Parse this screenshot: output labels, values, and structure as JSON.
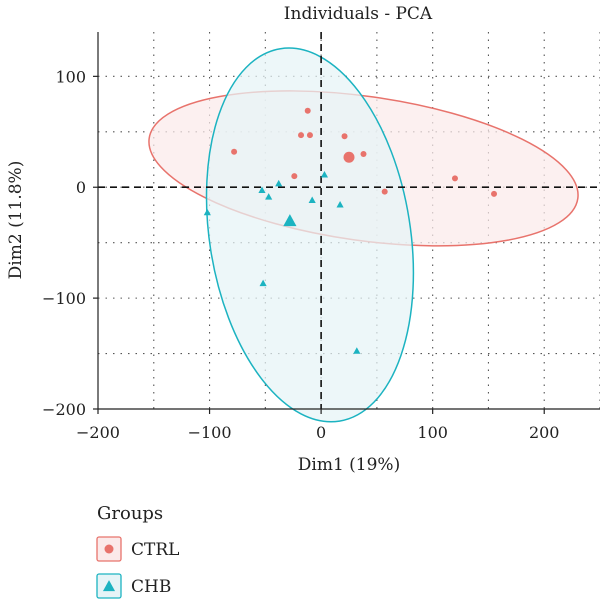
{
  "chart_data": {
    "type": "scatter",
    "title": "Individuals - PCA",
    "xlabel": "Dim1 (19%)",
    "ylabel": "Dim2 (11.8%)",
    "xlim": [
      -200,
      250
    ],
    "ylim": [
      -200,
      140
    ],
    "xticks": [
      -200,
      -100,
      0,
      100,
      200
    ],
    "yticks": [
      -200,
      -100,
      0,
      100
    ],
    "grid": "dotted",
    "legend": {
      "title": "Groups",
      "placement": "bottom-left"
    },
    "series": [
      {
        "name": "CTRL",
        "marker": "circle",
        "color": "#E8736C",
        "fill": "#FBEAEA",
        "points": [
          {
            "x": -78,
            "y": 32
          },
          {
            "x": -12,
            "y": 69
          },
          {
            "x": -18,
            "y": 47
          },
          {
            "x": -10,
            "y": 47
          },
          {
            "x": -24,
            "y": 10
          },
          {
            "x": 21,
            "y": 46
          },
          {
            "x": 38,
            "y": 30
          },
          {
            "x": 57,
            "y": -4
          },
          {
            "x": 120,
            "y": 8
          },
          {
            "x": 155,
            "y": -6
          }
        ],
        "mean": {
          "x": 25,
          "y": 27
        },
        "ellipse": {
          "cx": 38,
          "cy": 17,
          "rx": 194,
          "ry": 65,
          "angle_deg": 8
        }
      },
      {
        "name": "CHB",
        "marker": "triangle",
        "color": "#1CB3C1",
        "fill": "#E6F4F7",
        "points": [
          {
            "x": -102,
            "y": -23
          },
          {
            "x": -53,
            "y": -3
          },
          {
            "x": -47,
            "y": -9
          },
          {
            "x": -38,
            "y": 3
          },
          {
            "x": -8,
            "y": -12
          },
          {
            "x": 3,
            "y": 11
          },
          {
            "x": 17,
            "y": -16
          },
          {
            "x": -52,
            "y": -87
          },
          {
            "x": 32,
            "y": -148
          }
        ],
        "mean": {
          "x": -28,
          "y": -31
        },
        "ellipse": {
          "cx": -10,
          "cy": -43,
          "rx": 90,
          "ry": 170,
          "angle_deg": -9
        }
      }
    ]
  }
}
